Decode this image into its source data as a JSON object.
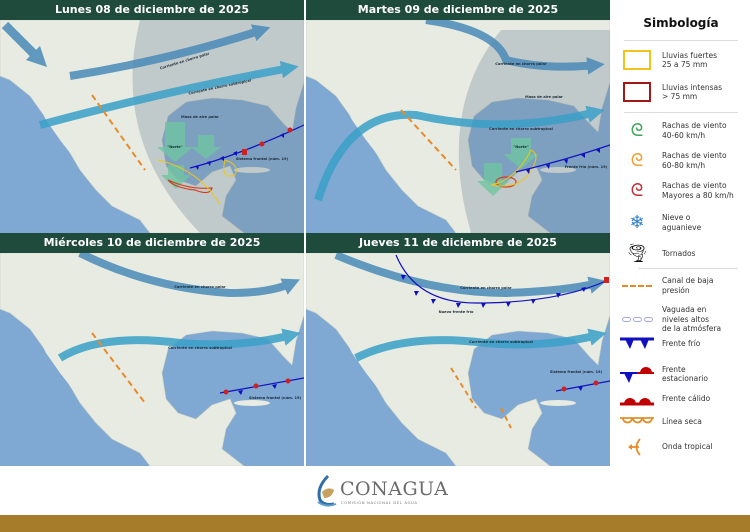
{
  "panels": [
    {
      "title": "Lunes 08 de diciembre de 2025",
      "labels": {
        "polar_jet": "Corriente en chorro polar",
        "subtropical_jet": "Corriente en chorro subtropical",
        "air_mass": "Masa de aire polar",
        "norte": "\"Norte\"",
        "front": "Sistema frontal (núm. 19)"
      }
    },
    {
      "title": "Martes 09 de diciembre de 2025",
      "labels": {
        "polar_jet": "Corriente en chorro polar",
        "subtropical_jet": "Corriente en chorro subtropical",
        "air_mass": "Masa de aire polar",
        "norte": "\"Norte\"",
        "front": "Frente frío (núm. 19)"
      }
    },
    {
      "title": "Miércoles 10 de diciembre de 2025",
      "labels": {
        "polar_jet": "Corriente en chorro polar",
        "subtropical_jet": "Corriente en chorro subtropical",
        "front": "Sistema frontal (núm. 19)"
      }
    },
    {
      "title": "Jueves 11 de diciembre de 2025",
      "labels": {
        "polar_jet": "Corriente en chorro polar",
        "subtropical_jet": "Corriente en chorro subtropical",
        "new_front": "Nuevo frente frío",
        "front": "Sistema frontal (núm. 19)"
      }
    }
  ],
  "legend": {
    "title": "Simbología",
    "items": [
      {
        "icon": "yellow-rectangle",
        "label1": "Lluvias fuertes",
        "label2": "25 a 75 mm",
        "color": "#f0c419"
      },
      {
        "icon": "red-rectangle",
        "label1": "Lluvias intensas",
        "label2": "> 75 mm",
        "color": "#a01818"
      },
      {
        "icon": "wind-icon",
        "label1": "Rachas de viento",
        "label2": "40-60 km/h",
        "color": "#3fa55a"
      },
      {
        "icon": "wind-icon",
        "label1": "Rachas de viento",
        "label2": "60-80 km/h",
        "color": "#f0a030"
      },
      {
        "icon": "wind-icon",
        "label1": "Rachas de viento",
        "label2": "Mayores a 80 km/h",
        "color": "#c0303a"
      },
      {
        "icon": "snowflake-icon",
        "label1": "Nieve o",
        "label2": "aguanieve",
        "color": "#2a7fc8"
      },
      {
        "icon": "tornado-icon",
        "label1": "Tornados",
        "label2": "",
        "color": "#111111"
      },
      {
        "icon": "trough-line",
        "label1": "Canal de baja",
        "label2": "presión",
        "color": "#e88a2a"
      },
      {
        "icon": "upper-trough",
        "label1": "Vaguada en",
        "label2": "niveles altos",
        "label3": "de la atmósfera",
        "color": "#a9a9e8"
      },
      {
        "icon": "cold-front",
        "label1": "Frente frío",
        "label2": "",
        "color": "#1010c0"
      },
      {
        "icon": "stationary-front",
        "label1": "Frente",
        "label2": "estacionario",
        "color": "#c00000"
      },
      {
        "icon": "warm-front",
        "label1": "Frente cálido",
        "label2": "",
        "color": "#c00000"
      },
      {
        "icon": "dry-line",
        "label1": "Línea seca",
        "label2": "",
        "color": "#e0902a"
      },
      {
        "icon": "tropical-wave",
        "label1": "Onda tropical",
        "label2": "",
        "color": "#e88a2a"
      }
    ]
  },
  "footer": {
    "brand": "CONAGUA",
    "subtitle": "COMISIÓN NACIONAL DEL AGUA"
  }
}
